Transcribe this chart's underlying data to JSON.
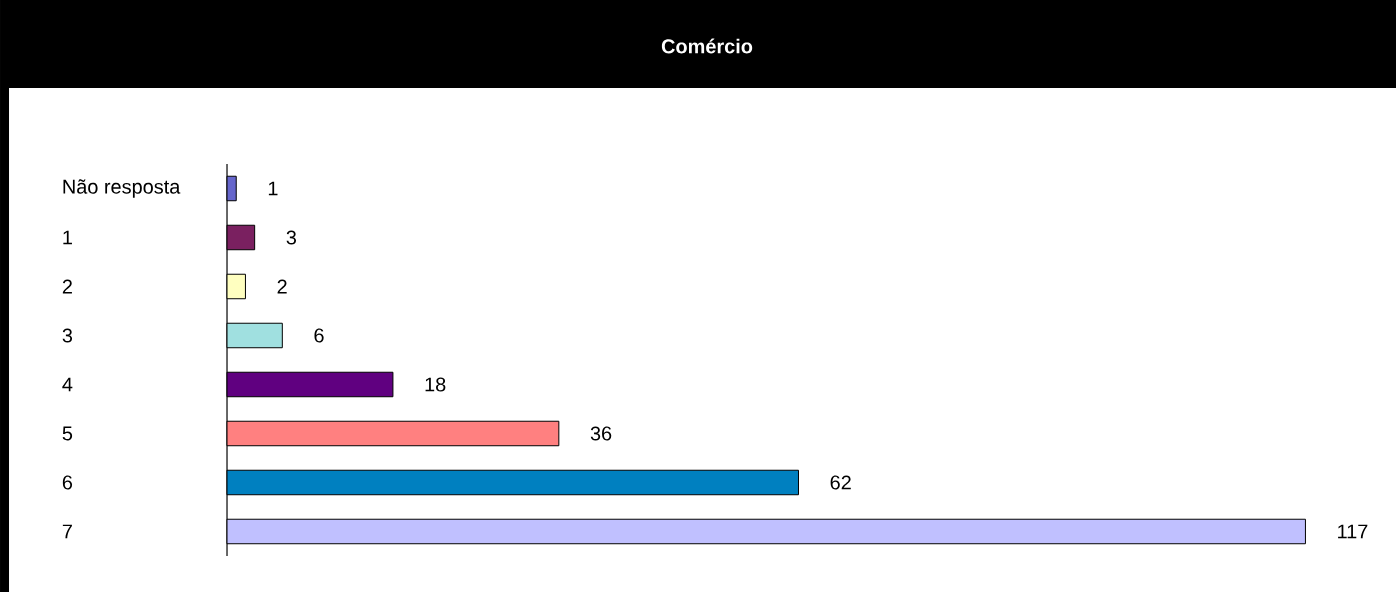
{
  "chart_data": {
    "type": "bar",
    "orientation": "horizontal",
    "title": "Comércio",
    "categories": [
      "Não resposta",
      "1",
      "2",
      "3",
      "4",
      "5",
      "6",
      "7"
    ],
    "values": [
      1,
      3,
      2,
      6,
      18,
      36,
      62,
      117
    ],
    "colors": [
      "#6666cc",
      "#7a2060",
      "#ffffc0",
      "#a0e0e0",
      "#600080",
      "#ff8080",
      "#0080c0",
      "#c0c0ff"
    ],
    "data_labels": true
  }
}
